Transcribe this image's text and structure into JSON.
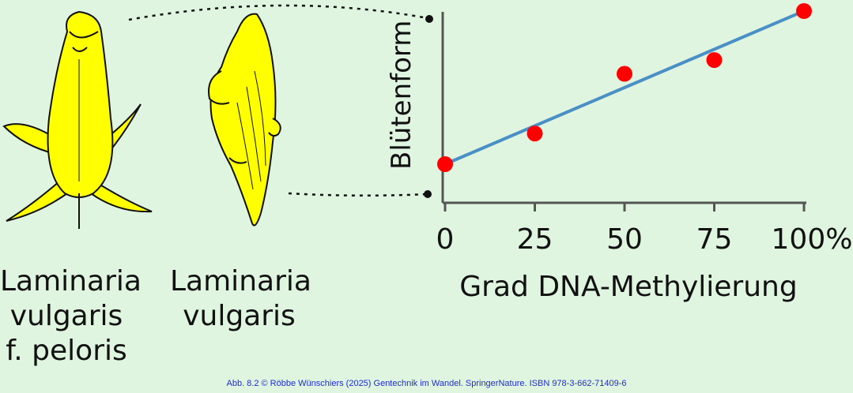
{
  "figure": {
    "label_left_lines": [
      "Laminaria",
      "vulgaris",
      "f. peloris"
    ],
    "label_right_lines": [
      "Laminaria",
      "vulgaris"
    ],
    "footer": "Abb. 8.2 © Röbbe Wünschiers (2025) Gentechnik im Wandel. SpringerNature. ISBN 978-3-662-71409-6",
    "colors": {
      "background": "#e0f5e0",
      "flower": "#ffff00",
      "points": "#ff0000",
      "fit_line": "#4a8fc6",
      "footer": "#1d2bd6"
    }
  },
  "chart_data": {
    "type": "scatter",
    "xlabel": "Grad DNA-Methylierung",
    "ylabel": "Blütenform",
    "x_ticks": [
      "0",
      "25",
      "50",
      "75",
      "100%"
    ],
    "xlim": [
      0,
      100
    ],
    "ylim": [
      0,
      1
    ],
    "grid": false,
    "points": [
      {
        "x": 0,
        "y": 0.0
      },
      {
        "x": 25,
        "y": 0.2
      },
      {
        "x": 50,
        "y": 0.59
      },
      {
        "x": 75,
        "y": 0.68
      },
      {
        "x": 100,
        "y": 1.0
      }
    ],
    "fit_line": {
      "x": [
        0,
        100
      ],
      "y": [
        0.0,
        1.0
      ]
    }
  }
}
